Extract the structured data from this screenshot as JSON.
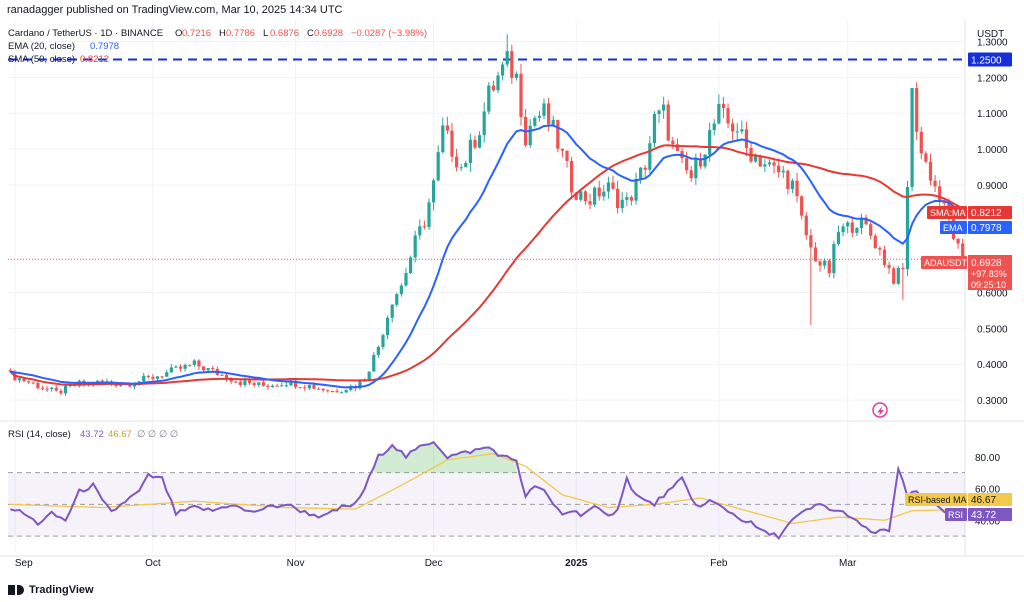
{
  "header": {
    "publisher": "ranadagger published on TradingView.com, Mar 10, 2025 14:34 UTC"
  },
  "brand": "TradingView",
  "legend": {
    "symbol": "Cardano / TetherUS · 1D · BINANCE",
    "ohlc": {
      "o_label": "O",
      "o_value": "0.7216",
      "h_label": "H",
      "h_value": "0.7786",
      "l_label": "L",
      "l_value": "0.6876",
      "c_label": "C",
      "c_value": "0.6928",
      "change": "−0.0287 (−3.98%)"
    },
    "ema": {
      "label": "EMA (20, close)",
      "value": "0.7978"
    },
    "sma": {
      "label": "SMA (50, close)",
      "value": "0.8212"
    },
    "rsi": {
      "label": "RSI (14, close)",
      "value": "43.72",
      "ma_value": "46.67",
      "extra": "∅ ∅ ∅ ∅"
    }
  },
  "price_axis": {
    "currency": "USDT",
    "ticks": [
      "1.3000",
      "1.2000",
      "1.1000",
      "1.0000",
      "0.9000",
      "0.6000",
      "0.5000",
      "0.4000",
      "0.3000"
    ],
    "tick_values": [
      1.3,
      1.2,
      1.1,
      1.0,
      0.9,
      0.6,
      0.5,
      0.4,
      0.3
    ]
  },
  "price_labels": {
    "resistance": "1.2500",
    "sma_tag": "SMA:MA",
    "sma_value": "0.8212",
    "ema_tag": "EMA",
    "ema_value": "0.7978",
    "symbol_tag": "ADAUSDT",
    "last_price": "0.6928",
    "pct_change": "+97.83%",
    "countdown": "09:25:10"
  },
  "rsi_axis": {
    "ticks": [
      "80.00",
      "60.00",
      "40.00"
    ],
    "tick_values": [
      80,
      60,
      40
    ],
    "ma_tag": "RSI-based MA",
    "ma_value": "46.67",
    "rsi_tag": "RSI",
    "rsi_value": "43.72"
  },
  "time_axis": {
    "labels": [
      "Sep",
      "Oct",
      "Nov",
      "Dec",
      "2025",
      "Feb",
      "Mar"
    ],
    "label_index": [
      1,
      31,
      62,
      92,
      123,
      154,
      182
    ]
  },
  "colors": {
    "up": "#26a69a",
    "down": "#ef5350",
    "ema": "#2962ff",
    "sma": "#e53935",
    "resistance": "#1530d8",
    "rsi": "#7e57c2",
    "rsi_ma": "#f2c94c",
    "grid": "#f0f3fa",
    "axis_text": "#131722"
  },
  "chart_data": {
    "type": "candlestick",
    "ylim": [
      0.25,
      1.36
    ],
    "y_scale": "linear",
    "resistance_level": 1.25,
    "candles_ohlc": [],
    "close_anchors": [
      [
        0,
        0.37
      ],
      [
        5,
        0.345
      ],
      [
        10,
        0.32
      ],
      [
        15,
        0.345
      ],
      [
        20,
        0.35
      ],
      [
        25,
        0.345
      ],
      [
        30,
        0.36
      ],
      [
        35,
        0.38
      ],
      [
        40,
        0.4
      ],
      [
        45,
        0.375
      ],
      [
        50,
        0.35
      ],
      [
        55,
        0.34
      ],
      [
        60,
        0.35
      ],
      [
        65,
        0.34
      ],
      [
        70,
        0.325
      ],
      [
        75,
        0.34
      ],
      [
        77,
        0.36
      ],
      [
        80,
        0.45
      ],
      [
        83,
        0.58
      ],
      [
        85,
        0.62
      ],
      [
        88,
        0.74
      ],
      [
        90,
        0.8
      ],
      [
        92,
        0.9
      ],
      [
        94,
        1.05
      ],
      [
        96,
        1.0
      ],
      [
        98,
        0.95
      ],
      [
        100,
        1.0
      ],
      [
        102,
        1.06
      ],
      [
        104,
        1.15
      ],
      [
        106,
        1.2
      ],
      [
        108,
        1.24
      ],
      [
        110,
        1.2
      ],
      [
        112,
        1.04
      ],
      [
        114,
        1.09
      ],
      [
        116,
        1.1
      ],
      [
        118,
        1.05
      ],
      [
        120,
        0.98
      ],
      [
        122,
        0.9
      ],
      [
        124,
        0.87
      ],
      [
        126,
        0.86
      ],
      [
        128,
        0.88
      ],
      [
        130,
        0.89
      ],
      [
        132,
        0.86
      ],
      [
        134,
        0.85
      ],
      [
        136,
        0.9
      ],
      [
        138,
        0.96
      ],
      [
        140,
        1.08
      ],
      [
        142,
        1.1
      ],
      [
        144,
        1.0
      ],
      [
        146,
        0.95
      ],
      [
        148,
        0.92
      ],
      [
        150,
        0.98
      ],
      [
        152,
        1.04
      ],
      [
        154,
        1.1
      ],
      [
        156,
        1.07
      ],
      [
        158,
        1.06
      ],
      [
        160,
        1.0
      ],
      [
        162,
        0.98
      ],
      [
        164,
        0.96
      ],
      [
        166,
        0.94
      ],
      [
        168,
        0.93
      ],
      [
        170,
        0.9
      ],
      [
        172,
        0.8
      ],
      [
        174,
        0.72
      ],
      [
        176,
        0.68
      ],
      [
        178,
        0.66
      ],
      [
        180,
        0.77
      ],
      [
        182,
        0.78
      ],
      [
        184,
        0.8
      ],
      [
        186,
        0.78
      ],
      [
        188,
        0.74
      ],
      [
        190,
        0.69
      ],
      [
        192,
        0.64
      ],
      [
        194,
        0.66
      ],
      [
        196,
        1.15
      ],
      [
        198,
        0.99
      ],
      [
        200,
        0.93
      ],
      [
        202,
        0.86
      ],
      [
        204,
        0.8
      ],
      [
        206,
        0.72
      ],
      [
        207,
        0.6928
      ]
    ],
    "rsi": {
      "range": [
        20,
        100
      ],
      "bands": [
        70,
        30
      ],
      "anchors": [
        [
          0,
          48
        ],
        [
          3,
          44
        ],
        [
          6,
          38
        ],
        [
          9,
          44
        ],
        [
          12,
          40
        ],
        [
          15,
          58
        ],
        [
          18,
          62
        ],
        [
          20,
          52
        ],
        [
          22,
          45
        ],
        [
          25,
          52
        ],
        [
          28,
          58
        ],
        [
          30,
          68
        ],
        [
          33,
          66
        ],
        [
          36,
          44
        ],
        [
          40,
          48
        ],
        [
          44,
          46
        ],
        [
          48,
          50
        ],
        [
          52,
          45
        ],
        [
          56,
          48
        ],
        [
          60,
          50
        ],
        [
          64,
          45
        ],
        [
          68,
          42
        ],
        [
          72,
          48
        ],
        [
          75,
          50
        ],
        [
          77,
          60
        ],
        [
          80,
          80
        ],
        [
          83,
          88
        ],
        [
          86,
          80
        ],
        [
          89,
          86
        ],
        [
          92,
          90
        ],
        [
          95,
          80
        ],
        [
          98,
          82
        ],
        [
          101,
          84
        ],
        [
          104,
          86
        ],
        [
          107,
          80
        ],
        [
          110,
          78
        ],
        [
          112,
          54
        ],
        [
          114,
          62
        ],
        [
          116,
          58
        ],
        [
          118,
          50
        ],
        [
          120,
          44
        ],
        [
          122,
          46
        ],
        [
          124,
          44
        ],
        [
          127,
          48
        ],
        [
          130,
          42
        ],
        [
          132,
          48
        ],
        [
          134,
          66
        ],
        [
          136,
          56
        ],
        [
          138,
          52
        ],
        [
          140,
          50
        ],
        [
          142,
          56
        ],
        [
          144,
          60
        ],
        [
          146,
          66
        ],
        [
          148,
          54
        ],
        [
          150,
          48
        ],
        [
          152,
          52
        ],
        [
          155,
          48
        ],
        [
          158,
          42
        ],
        [
          161,
          38
        ],
        [
          164,
          32
        ],
        [
          167,
          30
        ],
        [
          170,
          40
        ],
        [
          173,
          46
        ],
        [
          176,
          50
        ],
        [
          179,
          46
        ],
        [
          182,
          44
        ],
        [
          185,
          36
        ],
        [
          188,
          32
        ],
        [
          191,
          34
        ],
        [
          193,
          72
        ],
        [
          195,
          55
        ],
        [
          197,
          58
        ],
        [
          199,
          52
        ],
        [
          201,
          50
        ],
        [
          203,
          46
        ],
        [
          205,
          43.72
        ]
      ],
      "ma_anchors": [
        [
          0,
          50
        ],
        [
          20,
          48
        ],
        [
          40,
          52
        ],
        [
          60,
          48
        ],
        [
          75,
          47
        ],
        [
          85,
          62
        ],
        [
          95,
          78
        ],
        [
          105,
          82
        ],
        [
          112,
          74
        ],
        [
          120,
          56
        ],
        [
          130,
          48
        ],
        [
          140,
          50
        ],
        [
          150,
          54
        ],
        [
          160,
          46
        ],
        [
          170,
          38
        ],
        [
          180,
          42
        ],
        [
          190,
          40
        ],
        [
          196,
          46
        ],
        [
          205,
          46.67
        ]
      ]
    }
  }
}
